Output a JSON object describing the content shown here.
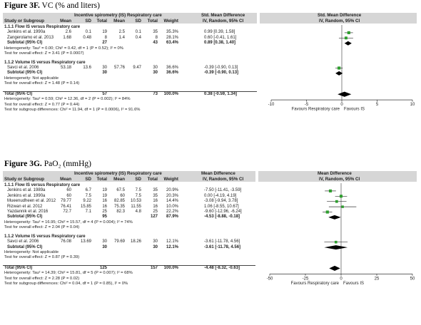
{
  "chart_data": [
    {
      "type": "table",
      "title_bold": "Figure 3F.",
      "title_rest": " VC (% and liters)",
      "header": {
        "study": "Study or Subgroup",
        "group1": "Incentive spirometry (IS)",
        "group2": "Respiratory care",
        "cols": [
          "Mean",
          "SD",
          "Total",
          "Mean",
          "SD",
          "Total",
          "Weight"
        ],
        "effect_top": "Std. Mean Difference",
        "effect_sub": "IV, Random, 95% CI",
        "plot_top": "Std. Mean Difference",
        "plot_sub": "IV, Random, 95% CI"
      },
      "axis": {
        "min": -10,
        "max": 10,
        "ticks": [
          "-10",
          "-5",
          "0",
          "5",
          "10"
        ],
        "tick_values": [
          -10,
          -5,
          0,
          5,
          10
        ],
        "left_label": "Favours Respiratory care",
        "right_label": "Favours IS"
      },
      "subgroups": [
        {
          "name": "1.1.1 Flow IS versus Respiratory care",
          "studies": [
            {
              "name": "Jenkins et al. 1990a",
              "m1": "2.6",
              "sd1": "0.1",
              "n1": "19",
              "m2": "2.5",
              "sd2": "0.1",
              "n2": "35",
              "weight": "35.3%",
              "ci": "0.99 [0.39, 1.58]",
              "est": 0.99,
              "lo": 0.39,
              "hi": 1.58
            },
            {
              "name": "Zangerolamo et al. 2013",
              "m1": "1.68",
              "sd1": "0.48",
              "n1": "8",
              "m2": "1.4",
              "sd2": "0.4",
              "n2": "8",
              "weight": "28.1%",
              "ci": "0.60 [-0.41, 1.61]",
              "est": 0.6,
              "lo": -0.41,
              "hi": 1.61
            }
          ],
          "subtotal": {
            "label": "Subtotal (95% CI)",
            "n1": "27",
            "n2": "43",
            "weight": "63.4%",
            "ci": "0.89 [0.38, 1.40]",
            "est": 0.89,
            "lo": 0.38,
            "hi": 1.4
          },
          "notes": [
            "Heterogeneity: Tau² = 0.00; Chi² = 0.42, df = 1 (P = 0.52); I² = 0%",
            "Test for overall effect: Z = 3.41 (P = 0.0007)"
          ]
        },
        {
          "name": "1.1.2 Volume IS versus Respiratory care",
          "studies": [
            {
              "name": "Savci et al. 2006",
              "m1": "53.18",
              "sd1": "13.6",
              "n1": "30",
              "m2": "57.76",
              "sd2": "9.47",
              "n2": "30",
              "weight": "36.6%",
              "ci": "-0.39 [-0.90, 0.13]",
              "est": -0.39,
              "lo": -0.9,
              "hi": 0.13
            }
          ],
          "subtotal": {
            "label": "Subtotal (95% CI)",
            "n1": "30",
            "n2": "30",
            "weight": "36.6%",
            "ci": "-0.39 [-0.90, 0.13]",
            "est": -0.39,
            "lo": -0.9,
            "hi": 0.13
          },
          "notes": [
            "Heterogeneity: Not applicable",
            "Test for overall effect: Z = 1.48 (P = 0.14)"
          ]
        }
      ],
      "total": {
        "label": "Total (95% CI)",
        "n1": "57",
        "n2": "73",
        "weight": "100.0%",
        "ci": "0.38 [-0.59, 1.34]",
        "est": 0.38,
        "lo": -0.59,
        "hi": 1.34
      },
      "total_notes": [
        "Heterogeneity: Tau² = 0.59; Chi² = 12.36, df = 2 (P = 0.002); I² = 84%",
        "Test for overall effect: Z = 0.77 (P = 0.44)",
        "Test for subgroup differences: Chi² = 11.94, df = 1 (P = 0.0006), I² = 91.6%"
      ]
    },
    {
      "type": "table",
      "title_bold": "Figure 3G.",
      "title_rest": " PaO₂ (mmHg)",
      "header": {
        "study": "Study or Subgroup",
        "group1": "Incentive spirometry (IS)",
        "group2": "Respiratory care",
        "cols": [
          "Mean",
          "SD",
          "Total",
          "Mean",
          "SD",
          "Total",
          "Weight"
        ],
        "effect_top": "Mean Difference",
        "effect_sub": "IV, Random, 95% CI",
        "plot_top": "Mean Difference",
        "plot_sub": "IV, Random, 95% CI"
      },
      "axis": {
        "min": -50,
        "max": 50,
        "ticks": [
          "-50",
          "-25",
          "0",
          "25",
          "50"
        ],
        "tick_values": [
          -50,
          -25,
          0,
          25,
          50
        ],
        "left_label": "Favours Respiratory care",
        "right_label": "Favours IS"
      },
      "subgroups": [
        {
          "name": "1.1.1 Flow IS versus Respiratory care",
          "studies": [
            {
              "name": "Jenkins et al. 1989a",
              "m1": "60",
              "sd1": "6.7",
              "n1": "19",
              "m2": "67.5",
              "sd2": "7.5",
              "n2": "35",
              "weight": "20.9%",
              "ci": "-7.50 [-11.41, -3.59]",
              "est": -7.5,
              "lo": -11.41,
              "hi": -3.59
            },
            {
              "name": "Jenkins et al. 1990a",
              "m1": "60",
              "sd1": "7.5",
              "n1": "19",
              "m2": "60",
              "sd2": "7.5",
              "n2": "35",
              "weight": "20.3%",
              "ci": "0.00 [-4.19, 4.19]",
              "est": 0.0,
              "lo": -4.19,
              "hi": 4.19
            },
            {
              "name": "Mueenudheen et al. 2012",
              "m1": "79.77",
              "sd1": "9.22",
              "n1": "16",
              "m2": "82.85",
              "sd2": "10.53",
              "n2": "16",
              "weight": "14.4%",
              "ci": "-3.08 [-9.94, 3.78]",
              "est": -3.08,
              "lo": -9.94,
              "hi": 3.78
            },
            {
              "name": "Rizwan et al. 2012",
              "m1": "76.41",
              "sd1": "15.85",
              "n1": "16",
              "m2": "75.35",
              "sd2": "11.55",
              "n2": "16",
              "weight": "10.0%",
              "ci": "1.06 [-8.55, 10.67]",
              "est": 1.06,
              "lo": -8.55,
              "hi": 10.67
            },
            {
              "name": "Yazdannik et al. 2016",
              "m1": "72.7",
              "sd1": "7.1",
              "n1": "25",
              "m2": "82.3",
              "sd2": "4.8",
              "n2": "25",
              "weight": "22.2%",
              "ci": "-9.60 [-12.96, -6.24]",
              "est": -9.6,
              "lo": -12.96,
              "hi": -6.24
            }
          ],
          "subtotal": {
            "label": "Subtotal (95% CI)",
            "n1": "95",
            "n2": "127",
            "weight": "87.9%",
            "ci": "-4.53 [-8.88, -0.18]",
            "est": -4.53,
            "lo": -8.88,
            "hi": -0.18
          },
          "notes": [
            "Heterogeneity: Tau² = 16.95; Chi² = 15.57, df = 4 (P = 0.004); I² = 74%",
            "Test for overall effect: Z = 2.04 (P = 0.04)"
          ]
        },
        {
          "name": "1.1.2 Volume IS versus Respiratory care",
          "studies": [
            {
              "name": "Savci et al. 2006",
              "m1": "76.08",
              "sd1": "13.69",
              "n1": "30",
              "m2": "79.69",
              "sd2": "18.26",
              "n2": "30",
              "weight": "12.1%",
              "ci": "-3.61 [-11.78, 4.56]",
              "est": -3.61,
              "lo": -11.78,
              "hi": 4.56
            }
          ],
          "subtotal": {
            "label": "Subtotal (95% CI)",
            "n1": "30",
            "n2": "30",
            "weight": "12.1%",
            "ci": "-3.61 [-11.78, 4.56]",
            "est": -3.61,
            "lo": -11.78,
            "hi": 4.56
          },
          "notes": [
            "Heterogeneity: Not applicable",
            "Test for overall effect: Z = 0.87 (P = 0.39)"
          ]
        }
      ],
      "total": {
        "label": "Total (95% CI)",
        "n1": "125",
        "n2": "157",
        "weight": "100.0%",
        "ci": "-4.48 [-8.32, -0.63]",
        "est": -4.48,
        "lo": -8.32,
        "hi": -0.63
      },
      "total_notes": [
        "Heterogeneity: Tau² = 14.39; Chi² = 15.81, df = 5 (P = 0.007); I² = 68%",
        "Test for overall effect: Z = 2.28 (P = 0.02)",
        "Test for subgroup differences: Chi² = 0.04, df = 1 (P = 0.85), I² = 0%"
      ]
    }
  ],
  "colors": {
    "marker": "#2e9e2e",
    "header_bg": "#d6d6d6",
    "line": "#333333"
  }
}
